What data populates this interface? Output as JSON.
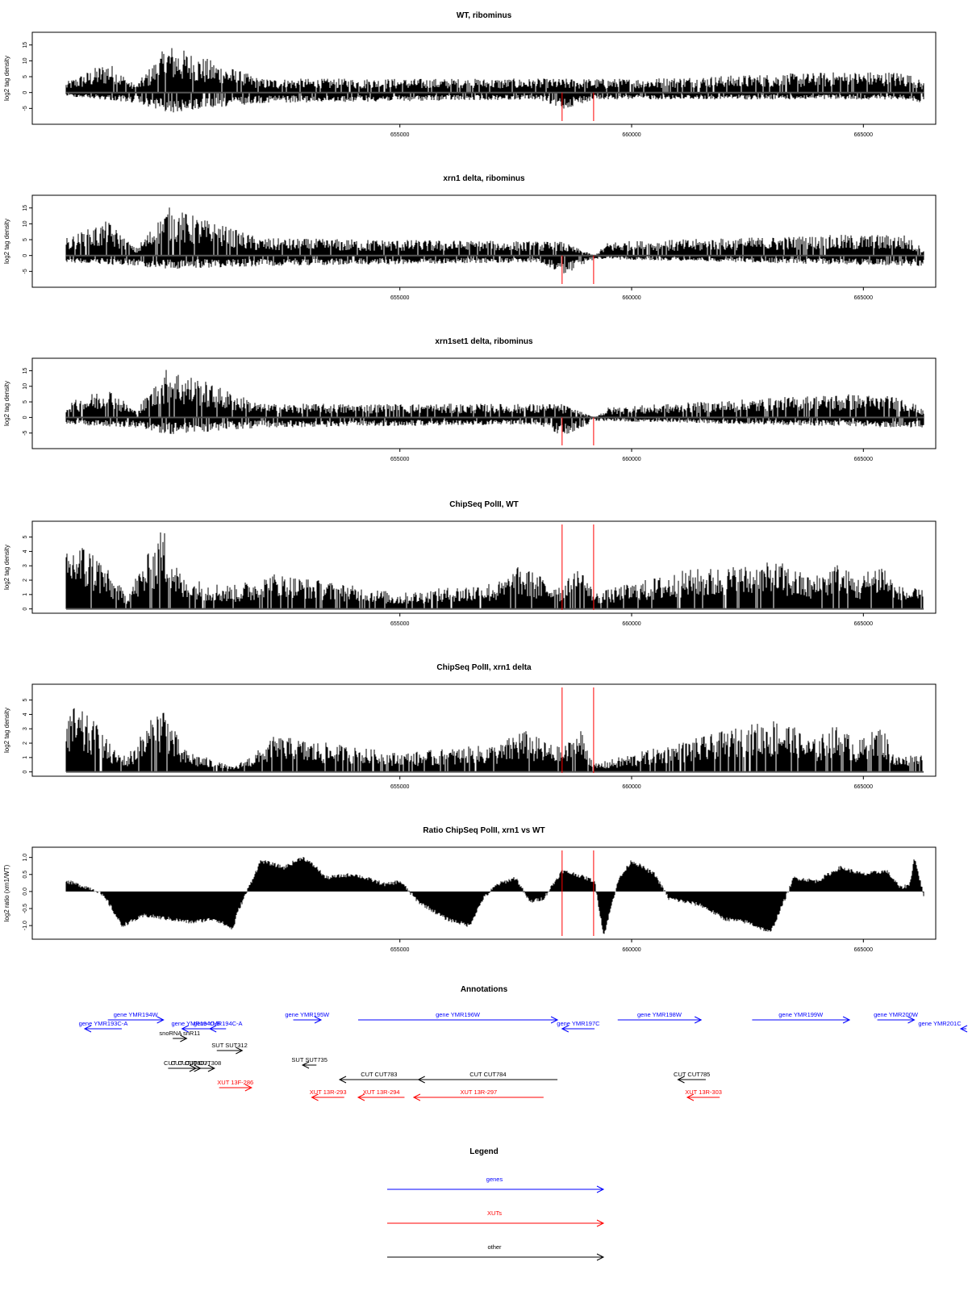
{
  "colors": {
    "genes": "#0000ff",
    "XUTs": "#ff0000",
    "other": "#000000",
    "marker": "#ff0000",
    "signal": "#000000",
    "axis": "#000000"
  },
  "genome": {
    "xmin": 647800,
    "xmax": 666300,
    "marker_positions": [
      658500,
      659180
    ]
  },
  "x_ticks": [
    {
      "value": 655000,
      "label": "655000"
    },
    {
      "value": 660000,
      "label": "660000"
    },
    {
      "value": 665000,
      "label": "665000"
    }
  ],
  "chart_data": [
    {
      "type": "bar",
      "title": "WT, ribominus",
      "ylabel": "log2 tag density",
      "ylim": [
        -10,
        19
      ],
      "yticks": [
        -5,
        0,
        5,
        10,
        15
      ],
      "baseline": 0,
      "markers": true,
      "series": [
        {
          "x": [
            647800,
            648700,
            649300,
            650000,
            652000,
            658500,
            659200,
            660000,
            664600,
            665900,
            666300
          ],
          "values": [
            3,
            9,
            2,
            14,
            4,
            4,
            4,
            4,
            6,
            6,
            3
          ]
        },
        {
          "x": [
            647800,
            649300,
            650000,
            652000,
            658000,
            658500,
            659200,
            665900,
            666300
          ],
          "values": [
            -1,
            -3,
            -6,
            -3,
            -2,
            -5,
            -2,
            -2,
            -3
          ]
        }
      ]
    },
    {
      "type": "bar",
      "title": "xrn1 delta, ribominus",
      "ylabel": "log2 tag density",
      "ylim": [
        -10,
        19
      ],
      "yticks": [
        -5,
        0,
        5,
        10,
        15
      ],
      "baseline": 0,
      "markers": true,
      "series": [
        {
          "x": [
            647800,
            648700,
            649300,
            650000,
            652000,
            658500,
            659200,
            659500,
            664600,
            665900,
            666300
          ],
          "values": [
            5,
            10,
            2,
            14,
            5,
            4,
            0,
            4,
            6,
            6,
            2
          ]
        },
        {
          "x": [
            647800,
            649300,
            650000,
            652000,
            658000,
            658500,
            659200,
            665900,
            666300
          ],
          "values": [
            -2,
            -3,
            -4,
            -3,
            -2,
            -6,
            -1,
            -3,
            -3
          ]
        }
      ]
    },
    {
      "type": "bar",
      "title": "xrn1set1 delta, ribominus",
      "ylabel": "log2 tag density",
      "ylim": [
        -10,
        19
      ],
      "yticks": [
        -5,
        0,
        5,
        10,
        15
      ],
      "baseline": 0,
      "markers": true,
      "series": [
        {
          "x": [
            647800,
            648700,
            649300,
            650000,
            652000,
            658500,
            659200,
            659500,
            664600,
            665900,
            666300
          ],
          "values": [
            4,
            9,
            2,
            15,
            4,
            4,
            0,
            3,
            7,
            6,
            2
          ]
        },
        {
          "x": [
            647800,
            649300,
            650000,
            652000,
            658000,
            658500,
            659200,
            665900,
            666300
          ],
          "values": [
            -2,
            -3,
            -5,
            -3,
            -2,
            -6,
            -1,
            -3,
            -3
          ]
        }
      ]
    },
    {
      "type": "bar",
      "title": "ChipSeq PolII, WT",
      "ylabel": "log2 tag density",
      "ylim": [
        -0.3,
        6.1
      ],
      "yticks": [
        0,
        1,
        2,
        3,
        4,
        5
      ],
      "baseline": 0,
      "markers": true,
      "series": [
        {
          "x": [
            647800,
            648000,
            648500,
            648800,
            649100,
            649900,
            650300,
            651400,
            652300,
            655000,
            657200,
            657600,
            658100,
            658500,
            658900,
            659200,
            659800,
            660500,
            661200,
            663200,
            663900,
            664400,
            664900,
            665400,
            665700,
            666300
          ],
          "values": [
            3.5,
            4.5,
            3.5,
            2,
            1,
            5.3,
            2,
            1.5,
            2.3,
            1,
            1.8,
            2.8,
            2,
            1.5,
            2.8,
            1,
            1.5,
            2,
            2.5,
            3,
            2,
            3,
            2,
            3.2,
            1.5,
            1.2
          ]
        }
      ]
    },
    {
      "type": "bar",
      "title": "ChipSeq PolII, xrn1 delta",
      "ylabel": "log2 tag density",
      "ylim": [
        -0.3,
        6.1
      ],
      "yticks": [
        0,
        1,
        2,
        3,
        4,
        5
      ],
      "baseline": 0,
      "markers": true,
      "series": [
        {
          "x": [
            647800,
            648000,
            648500,
            648800,
            649100,
            649900,
            650300,
            651400,
            652000,
            652300,
            655000,
            657200,
            657600,
            658100,
            658500,
            658900,
            659200,
            659800,
            660500,
            661200,
            663200,
            663900,
            664400,
            664900,
            665400,
            665700,
            666300
          ],
          "values": [
            4,
            4.2,
            3,
            1.5,
            1,
            4.5,
            1.5,
            0.3,
            1.5,
            2.3,
            1.2,
            1.8,
            2.8,
            2,
            1.5,
            2.8,
            0.5,
            1,
            1.5,
            2,
            3.5,
            2,
            3,
            2,
            3,
            1,
            1.2
          ]
        }
      ]
    },
    {
      "type": "area",
      "title": "Ratio ChipSeq PolII, xrn1 vs WT",
      "ylabel": "log2 ratio (xrn1/WT)",
      "ylim": [
        -1.4,
        1.3
      ],
      "yticks": [
        -1.0,
        -0.5,
        0.0,
        0.5,
        1.0
      ],
      "tick_labels": [
        "-1.0",
        "-0.5",
        "0.0",
        "0.5",
        "1.0"
      ],
      "baseline": 0,
      "markers": true,
      "series": [
        {
          "x": [
            647800,
            648300,
            648500,
            648700,
            649000,
            649500,
            650000,
            650500,
            651000,
            651400,
            651500,
            652000,
            652500,
            652900,
            653200,
            653400,
            654000,
            654700,
            655000,
            655400,
            656000,
            656500,
            656800,
            657100,
            657500,
            657800,
            658100,
            658500,
            658800,
            659000,
            659200,
            659400,
            659700,
            660000,
            660500,
            660800,
            661500,
            662000,
            662500,
            663000,
            663500,
            664000,
            664500,
            665000,
            665500,
            665800,
            666000,
            666100,
            666300
          ],
          "values": [
            0.3,
            0.1,
            0,
            -0.3,
            -1.0,
            -0.7,
            -0.8,
            -0.9,
            -0.8,
            -1.1,
            -0.6,
            0.9,
            0.7,
            1.0,
            0.7,
            0.4,
            0.5,
            0.2,
            0.3,
            -0.3,
            -0.8,
            -1.0,
            -0.2,
            0.2,
            0.4,
            -0.3,
            -0.2,
            0.6,
            0.5,
            0.4,
            0.3,
            -1.3,
            0.3,
            0.9,
            0.5,
            -0.2,
            -0.4,
            -0.8,
            -0.9,
            -1.2,
            0.4,
            0.3,
            0.7,
            0.5,
            0.6,
            0.1,
            0.2,
            1.0,
            -0.1
          ]
        }
      ]
    }
  ],
  "annotations": {
    "title": "Annotations",
    "features": [
      {
        "label": "gene YMR194W",
        "start": 648700,
        "end": 649900,
        "row": 1,
        "class": "genes",
        "strand": "+"
      },
      {
        "label": "gene YMR193C-A",
        "start": 648200,
        "end": 649000,
        "row": 2,
        "class": "genes",
        "strand": "-"
      },
      {
        "label": "gene YMR194C-B",
        "start": 650300,
        "end": 650900,
        "row": 2,
        "class": "genes",
        "strand": "-"
      },
      {
        "label": "gene YMR194C-A",
        "start": 650900,
        "end": 651250,
        "row": 2,
        "class": "genes",
        "strand": "-"
      },
      {
        "label": "gene YMR195W",
        "start": 652700,
        "end": 653300,
        "row": 1,
        "class": "genes",
        "strand": "+"
      },
      {
        "label": "gene YMR196W",
        "start": 654100,
        "end": 658400,
        "row": 1,
        "class": "genes",
        "strand": "+"
      },
      {
        "label": "gene YMR197C",
        "start": 658500,
        "end": 659200,
        "row": 2,
        "class": "genes",
        "strand": "-"
      },
      {
        "label": "gene YMR198W",
        "start": 659700,
        "end": 661500,
        "row": 1,
        "class": "genes",
        "strand": "+"
      },
      {
        "label": "gene YMR199W",
        "start": 662600,
        "end": 664700,
        "row": 1,
        "class": "genes",
        "strand": "+"
      },
      {
        "label": "gene YMR200W",
        "start": 665300,
        "end": 666100,
        "row": 1,
        "class": "genes",
        "strand": "+"
      },
      {
        "label": "gene YMR201C",
        "start": 667100,
        "end": 668300,
        "row": 2,
        "class": "genes",
        "strand": "-"
      },
      {
        "label": "snoRNA snR11",
        "start": 650100,
        "end": 650400,
        "row": 3,
        "class": "other",
        "strand": "+"
      },
      {
        "label": "SUT SUT312",
        "start": 651050,
        "end": 651600,
        "row": 4,
        "class": "other",
        "strand": "+"
      },
      {
        "label": "SUT SUT735",
        "start": 652900,
        "end": 653200,
        "row": 5,
        "class": "other",
        "strand": "-"
      },
      {
        "label": "CUT CUT306",
        "start": 650000,
        "end": 650600,
        "row": 6,
        "class": "other",
        "strand": "+"
      },
      {
        "label": "CUT CUT307",
        "start": 650200,
        "end": 650700,
        "row": 6,
        "class": "other",
        "strand": "+"
      },
      {
        "label": "CUT CUT308",
        "start": 650500,
        "end": 651000,
        "row": 6,
        "class": "other",
        "strand": "+"
      },
      {
        "label": "CUT CUT783",
        "start": 653700,
        "end": 655400,
        "row": 7,
        "class": "other",
        "strand": "-"
      },
      {
        "label": "CUT CUT784",
        "start": 655400,
        "end": 658400,
        "row": 7,
        "class": "other",
        "strand": "-"
      },
      {
        "label": "CUT CUT785",
        "start": 661000,
        "end": 661600,
        "row": 7,
        "class": "other",
        "strand": "-"
      },
      {
        "label": "XUT 13F-286",
        "start": 651100,
        "end": 651800,
        "row": 8,
        "class": "XUTs",
        "strand": "+"
      },
      {
        "label": "XUT 13R-293",
        "start": 653100,
        "end": 653800,
        "row": 9,
        "class": "XUTs",
        "strand": "-"
      },
      {
        "label": "XUT 13R-294",
        "start": 654100,
        "end": 655100,
        "row": 9,
        "class": "XUTs",
        "strand": "-"
      },
      {
        "label": "XUT 13R-297",
        "start": 655300,
        "end": 658100,
        "row": 9,
        "class": "XUTs",
        "strand": "-"
      },
      {
        "label": "XUT 13R-303",
        "start": 661200,
        "end": 661900,
        "row": 9,
        "class": "XUTs",
        "strand": "-"
      }
    ]
  },
  "legend": {
    "title": "Legend",
    "items": [
      {
        "label": "genes",
        "class": "genes"
      },
      {
        "label": "XUTs",
        "class": "XUTs"
      },
      {
        "label": "other",
        "class": "other"
      }
    ]
  }
}
